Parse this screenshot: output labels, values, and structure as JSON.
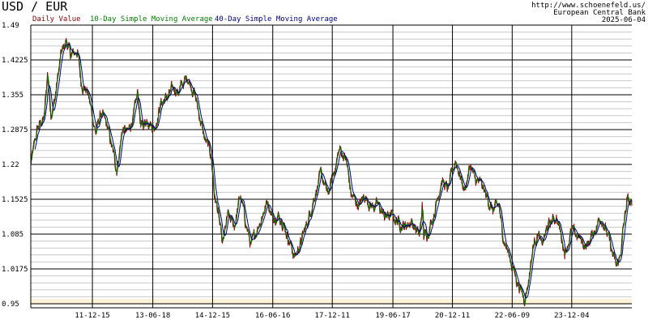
{
  "chart_data": {
    "type": "line",
    "title": "USD / EUR",
    "legend": [
      {
        "label": "Daily Value",
        "color": "#8b0000"
      },
      {
        "label": "10-Day Simple Moving Average",
        "color": "#008000"
      },
      {
        "label": "40-Day Simple Moving Average",
        "color": "#000080"
      }
    ],
    "source": {
      "url": "http://www.schoenefeld.us/",
      "provider": "European Central Bank",
      "date": "2025-06-04"
    },
    "ylim": [
      0.95,
      1.49
    ],
    "yticks": [
      {
        "value": 1.49,
        "label": "1.49"
      },
      {
        "value": 1.4225,
        "label": "1.4225"
      },
      {
        "value": 1.355,
        "label": "1.355"
      },
      {
        "value": 1.2875,
        "label": "1.2875"
      },
      {
        "value": 1.22,
        "label": "1.22"
      },
      {
        "value": 1.1525,
        "label": "1.1525"
      },
      {
        "value": 1.085,
        "label": "1.085"
      },
      {
        "value": 1.0175,
        "label": "1.0175"
      },
      {
        "value": 0.95,
        "label": "0.95"
      }
    ],
    "xlim": [
      "2010-06-01",
      "2025-06-04"
    ],
    "xticks": [
      {
        "date": "2011-12-15",
        "label": "11-12-15"
      },
      {
        "date": "2013-06-18",
        "label": "13-06-18"
      },
      {
        "date": "2014-12-15",
        "label": "14-12-15"
      },
      {
        "date": "2016-06-16",
        "label": "16-06-16"
      },
      {
        "date": "2017-12-11",
        "label": "17-12-11"
      },
      {
        "date": "2019-06-17",
        "label": "19-06-17"
      },
      {
        "date": "2020-12-11",
        "label": "20-12-11"
      },
      {
        "date": "2022-06-09",
        "label": "22-06-09"
      },
      {
        "date": "2023-12-04",
        "label": "23-12-04"
      }
    ],
    "grid": true,
    "series": [
      {
        "name": "Daily Value",
        "color": "#8b0000",
        "points": [
          [
            "2010-06-01",
            1.22
          ],
          [
            "2010-08-01",
            1.29
          ],
          [
            "2010-10-01",
            1.31
          ],
          [
            "2010-11-01",
            1.4
          ],
          [
            "2010-12-01",
            1.32
          ],
          [
            "2011-01-01",
            1.34
          ],
          [
            "2011-03-01",
            1.43
          ],
          [
            "2011-04-20",
            1.46
          ],
          [
            "2011-06-01",
            1.43
          ],
          [
            "2011-08-01",
            1.44
          ],
          [
            "2011-09-01",
            1.38
          ],
          [
            "2011-11-01",
            1.36
          ],
          [
            "2012-01-15",
            1.28
          ],
          [
            "2012-03-01",
            1.32
          ],
          [
            "2012-05-01",
            1.29
          ],
          [
            "2012-07-24",
            1.21
          ],
          [
            "2012-09-15",
            1.29
          ],
          [
            "2012-11-01",
            1.28
          ],
          [
            "2013-01-01",
            1.32
          ],
          [
            "2013-02-01",
            1.36
          ],
          [
            "2013-03-01",
            1.29
          ],
          [
            "2013-05-01",
            1.31
          ],
          [
            "2013-07-01",
            1.29
          ],
          [
            "2013-09-01",
            1.34
          ],
          [
            "2013-11-01",
            1.35
          ],
          [
            "2014-01-01",
            1.37
          ],
          [
            "2014-02-01",
            1.36
          ],
          [
            "2014-05-01",
            1.39
          ],
          [
            "2014-07-01",
            1.36
          ],
          [
            "2014-09-01",
            1.3
          ],
          [
            "2014-10-01",
            1.27
          ],
          [
            "2014-12-01",
            1.24
          ],
          [
            "2015-01-01",
            1.16
          ],
          [
            "2015-02-01",
            1.13
          ],
          [
            "2015-03-15",
            1.06
          ],
          [
            "2015-05-01",
            1.12
          ],
          [
            "2015-07-01",
            1.1
          ],
          [
            "2015-08-25",
            1.16
          ],
          [
            "2015-10-01",
            1.12
          ],
          [
            "2015-12-01",
            1.06
          ],
          [
            "2016-02-01",
            1.1
          ],
          [
            "2016-05-01",
            1.15
          ],
          [
            "2016-07-01",
            1.11
          ],
          [
            "2016-09-01",
            1.12
          ],
          [
            "2016-11-01",
            1.08
          ],
          [
            "2017-01-01",
            1.04
          ],
          [
            "2017-03-01",
            1.07
          ],
          [
            "2017-05-01",
            1.11
          ],
          [
            "2017-07-01",
            1.16
          ],
          [
            "2017-09-01",
            1.2
          ],
          [
            "2017-11-01",
            1.16
          ],
          [
            "2018-01-01",
            1.21
          ],
          [
            "2018-02-15",
            1.25
          ],
          [
            "2018-04-15",
            1.23
          ],
          [
            "2018-06-01",
            1.16
          ],
          [
            "2018-08-15",
            1.14
          ],
          [
            "2018-10-01",
            1.16
          ],
          [
            "2018-12-01",
            1.14
          ],
          [
            "2019-02-01",
            1.14
          ],
          [
            "2019-04-01",
            1.12
          ],
          [
            "2019-06-01",
            1.12
          ],
          [
            "2019-08-01",
            1.11
          ],
          [
            "2019-10-01",
            1.1
          ],
          [
            "2019-12-01",
            1.11
          ],
          [
            "2020-02-15",
            1.08
          ],
          [
            "2020-03-10",
            1.14
          ],
          [
            "2020-03-24",
            1.08
          ],
          [
            "2020-05-01",
            1.09
          ],
          [
            "2020-07-01",
            1.13
          ],
          [
            "2020-09-01",
            1.19
          ],
          [
            "2020-11-01",
            1.17
          ],
          [
            "2021-01-06",
            1.23
          ],
          [
            "2021-03-30",
            1.17
          ],
          [
            "2021-05-25",
            1.22
          ],
          [
            "2021-07-01",
            1.19
          ],
          [
            "2021-09-01",
            1.18
          ],
          [
            "2021-11-01",
            1.15
          ],
          [
            "2021-12-15",
            1.13
          ],
          [
            "2022-02-10",
            1.14
          ],
          [
            "2022-03-07",
            1.09
          ],
          [
            "2022-05-01",
            1.05
          ],
          [
            "2022-07-14",
            1.0
          ],
          [
            "2022-09-27",
            0.96
          ],
          [
            "2022-11-01",
            0.99
          ],
          [
            "2022-12-15",
            1.06
          ],
          [
            "2023-02-01",
            1.09
          ],
          [
            "2023-03-01",
            1.06
          ],
          [
            "2023-05-01",
            1.1
          ],
          [
            "2023-07-18",
            1.12
          ],
          [
            "2023-10-03",
            1.05
          ],
          [
            "2023-12-01",
            1.09
          ],
          [
            "2024-02-01",
            1.08
          ],
          [
            "2024-04-16",
            1.06
          ],
          [
            "2024-06-01",
            1.08
          ],
          [
            "2024-08-26",
            1.12
          ],
          [
            "2024-10-01",
            1.1
          ],
          [
            "2025-01-13",
            1.02
          ],
          [
            "2025-02-15",
            1.04
          ],
          [
            "2025-03-15",
            1.09
          ],
          [
            "2025-04-21",
            1.15
          ],
          [
            "2025-06-04",
            1.14
          ]
        ]
      },
      {
        "name": "10-Day Simple Moving Average",
        "color": "#008000"
      },
      {
        "name": "40-Day Simple Moving Average",
        "color": "#000080"
      }
    ]
  }
}
